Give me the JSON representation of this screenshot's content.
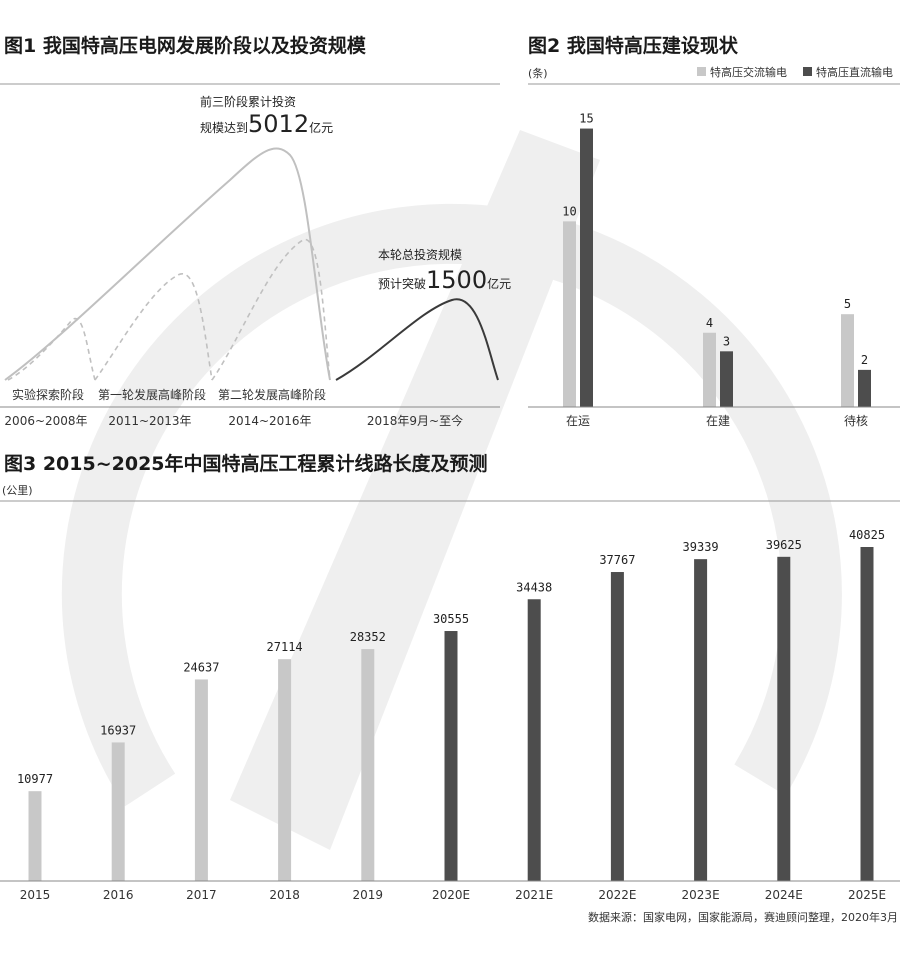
{
  "colors": {
    "light": "#c8c8c8",
    "dark": "#4d4d4d",
    "watermark": "#efefef",
    "axis": "#888888",
    "curve_light": "#c0c0c0",
    "curve_dark": "#3a3a3a"
  },
  "chart_data": [
    {
      "type": "line",
      "title": "图1 我国特高压电网发展阶段以及投资规模",
      "phase_labels": [
        "实验探索阶段",
        "第一轮发展高峰阶段",
        "第二轮发展高峰阶段"
      ],
      "periods": [
        "2006~2008年",
        "2011~2013年",
        "2014~2016年",
        "2018年9月~至今"
      ],
      "annotation1": {
        "line1": "前三阶段累计投资",
        "prefix": "规模达到",
        "value": "5012",
        "suffix": "亿元"
      },
      "annotation2": {
        "line1": "本轮总投资规模",
        "prefix": "预计突破",
        "value": "1500",
        "suffix": "亿元"
      }
    },
    {
      "type": "bar",
      "title": "图2 我国特高压建设现状",
      "unit": "(条)",
      "categories": [
        "在运",
        "在建",
        "待核"
      ],
      "series": [
        {
          "name": "特高压交流输电",
          "values": [
            10,
            4,
            5
          ]
        },
        {
          "name": "特高压直流输电",
          "values": [
            15,
            3,
            2
          ]
        }
      ],
      "ylim": [
        0,
        16
      ]
    },
    {
      "type": "bar",
      "title": "图3 2015~2025年中国特高压工程累计线路长度及预测",
      "unit": "(公里)",
      "categories": [
        "2015",
        "2016",
        "2017",
        "2018",
        "2019",
        "2020E",
        "2021E",
        "2022E",
        "2023E",
        "2024E",
        "2025E"
      ],
      "values": [
        10977,
        16937,
        24637,
        27114,
        28352,
        30555,
        34438,
        37767,
        39339,
        39625,
        40825
      ],
      "forecast_from_index": 5,
      "ylim": [
        0,
        42500
      ]
    }
  ],
  "source": "数据来源：国家电网，国家能源局，赛迪顾问整理，2020年3月"
}
